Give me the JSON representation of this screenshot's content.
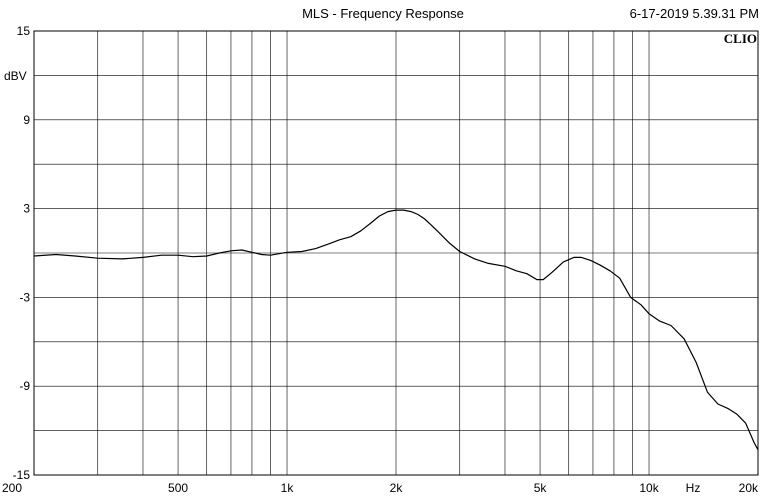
{
  "header": {
    "title": "MLS - Frequency Response",
    "timestamp": "6-17-2019 5.39.31 PM",
    "logo": "CLIO"
  },
  "chart_data": {
    "type": "line",
    "title": "MLS - Frequency Response",
    "xlabel": "Hz",
    "ylabel": "dBV",
    "x_scale": "log",
    "xlim": [
      200,
      20000
    ],
    "ylim": [
      -15,
      15
    ],
    "x_ticks": [
      200,
      500,
      1000,
      2000,
      5000,
      10000,
      20000
    ],
    "x_tick_labels": [
      "200",
      "500",
      "1k",
      "2k",
      "5k",
      "10k",
      "20k"
    ],
    "y_ticks": [
      15,
      9,
      3,
      -3,
      -9,
      -15
    ],
    "y_tick_labels": [
      "15",
      "9",
      "3",
      "-3",
      "-9",
      "-15"
    ],
    "grid": true,
    "line_color": "#000000",
    "grid_color": "#000000",
    "series": [
      {
        "x": [
          200,
          230,
          260,
          300,
          350,
          400,
          450,
          500,
          550,
          600,
          650,
          700,
          750,
          800,
          850,
          900,
          950,
          1000,
          1100,
          1200,
          1300,
          1400,
          1500,
          1600,
          1700,
          1800,
          1900,
          2000,
          2100,
          2200,
          2300,
          2400,
          2500,
          2600,
          2800,
          3000,
          3300,
          3600,
          4000,
          4300,
          4600,
          4900,
          5100,
          5400,
          5800,
          6200,
          6500,
          6900,
          7300,
          7800,
          8300,
          8900,
          9500,
          10000,
          10700,
          11500,
          12500,
          13500,
          14500,
          15500,
          16500,
          17500,
          18500,
          19500,
          20000
        ],
        "y": [
          -0.2,
          -0.1,
          -0.2,
          -0.35,
          -0.4,
          -0.3,
          -0.15,
          -0.15,
          -0.25,
          -0.2,
          0.0,
          0.15,
          0.2,
          0.05,
          -0.1,
          -0.15,
          -0.05,
          0.05,
          0.1,
          0.3,
          0.6,
          0.9,
          1.1,
          1.5,
          2.0,
          2.5,
          2.8,
          2.9,
          2.9,
          2.8,
          2.6,
          2.3,
          1.9,
          1.5,
          0.7,
          0.1,
          -0.4,
          -0.7,
          -0.9,
          -1.2,
          -1.4,
          -1.8,
          -1.8,
          -1.3,
          -0.6,
          -0.3,
          -0.3,
          -0.5,
          -0.8,
          -1.2,
          -1.7,
          -3.0,
          -3.5,
          -4.1,
          -4.6,
          -4.9,
          -5.8,
          -7.4,
          -9.4,
          -10.2,
          -10.5,
          -10.9,
          -11.5,
          -12.8,
          -13.3
        ]
      }
    ]
  }
}
